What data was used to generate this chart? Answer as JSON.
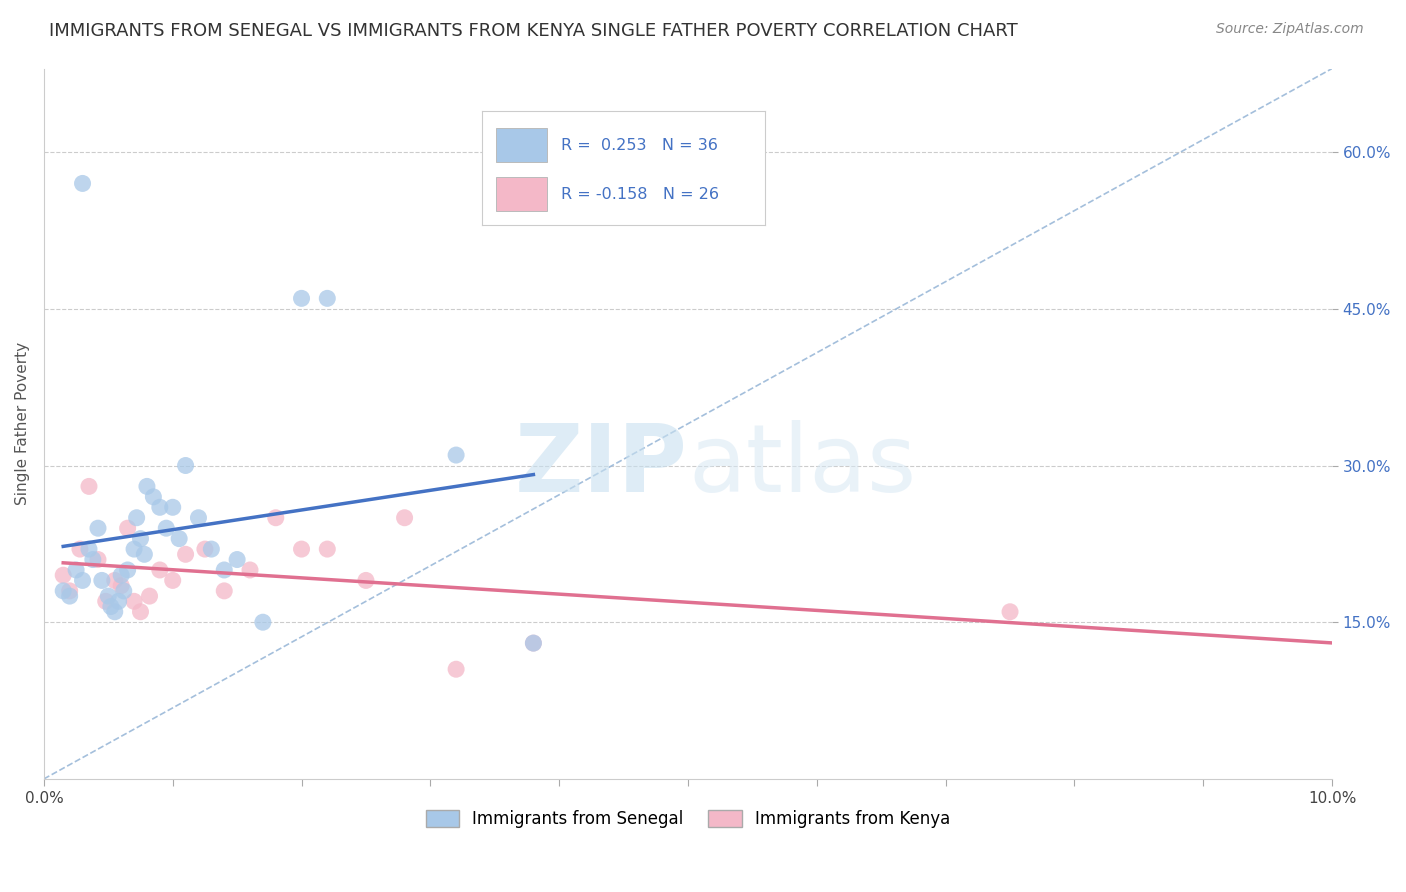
{
  "title": "IMMIGRANTS FROM SENEGAL VS IMMIGRANTS FROM KENYA SINGLE FATHER POVERTY CORRELATION CHART",
  "source": "Source: ZipAtlas.com",
  "ylabel": "Single Father Poverty",
  "legend_label1": "Immigrants from Senegal",
  "legend_label2": "Immigrants from Kenya",
  "r1": 0.253,
  "n1": 36,
  "r2": -0.158,
  "n2": 26,
  "color1": "#a8c8e8",
  "color1_line": "#4472c4",
  "color2": "#f4b8c8",
  "color2_line": "#e07090",
  "diagonal_color": "#9ab8d8",
  "background": "#ffffff",
  "grid_color": "#cccccc",
  "xlim_min": 0.0,
  "xlim_max": 10.0,
  "ylim_min": 0.0,
  "ylim_max": 68.0,
  "ytick_vals": [
    15.0,
    30.0,
    45.0,
    60.0
  ],
  "senegal_x": [
    0.15,
    0.2,
    0.25,
    0.3,
    0.35,
    0.38,
    0.42,
    0.45,
    0.5,
    0.52,
    0.55,
    0.58,
    0.6,
    0.62,
    0.65,
    0.7,
    0.72,
    0.75,
    0.78,
    0.8,
    0.85,
    0.9,
    0.95,
    1.0,
    1.05,
    1.1,
    1.2,
    1.3,
    1.4,
    1.5,
    1.7,
    2.0,
    2.2,
    3.2,
    0.3,
    3.8
  ],
  "senegal_y": [
    18.0,
    17.5,
    20.0,
    19.0,
    22.0,
    21.0,
    24.0,
    19.0,
    17.5,
    16.5,
    16.0,
    17.0,
    19.5,
    18.0,
    20.0,
    22.0,
    25.0,
    23.0,
    21.5,
    28.0,
    27.0,
    26.0,
    24.0,
    26.0,
    23.0,
    30.0,
    25.0,
    22.0,
    20.0,
    21.0,
    15.0,
    46.0,
    46.0,
    31.0,
    57.0,
    13.0
  ],
  "kenya_x": [
    0.15,
    0.2,
    0.28,
    0.35,
    0.42,
    0.48,
    0.55,
    0.6,
    0.65,
    0.7,
    0.75,
    0.82,
    0.9,
    1.0,
    1.1,
    1.25,
    1.4,
    1.6,
    1.8,
    2.0,
    2.2,
    2.5,
    2.8,
    3.2,
    7.5,
    3.8
  ],
  "kenya_y": [
    19.5,
    18.0,
    22.0,
    28.0,
    21.0,
    17.0,
    19.0,
    18.5,
    24.0,
    17.0,
    16.0,
    17.5,
    20.0,
    19.0,
    21.5,
    22.0,
    18.0,
    20.0,
    25.0,
    22.0,
    22.0,
    19.0,
    25.0,
    10.5,
    16.0,
    13.0
  ],
  "watermark_zip": "ZIP",
  "watermark_atlas": "atlas",
  "title_fontsize": 13,
  "axis_label_fontsize": 11,
  "tick_fontsize": 11,
  "legend_fontsize": 12,
  "source_fontsize": 10
}
